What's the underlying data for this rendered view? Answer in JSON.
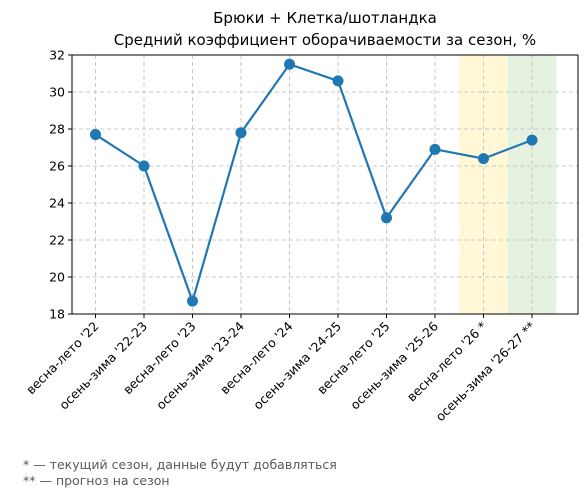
{
  "chart_data": {
    "type": "line",
    "title_line1": "Брюки + Клетка/шотландка",
    "title_line2": "Средний коэффициент оборачиваемости за сезон, %",
    "xlabel": "",
    "ylabel": "",
    "categories": [
      "весна-лето '22",
      "осень-зима '22-23",
      "весна-лето '23",
      "осень-зима '23-24",
      "весна-лето '24",
      "осень-зима '24-25",
      "весна-лето '25",
      "осень-зима '25-26",
      "весна-лето '26 *",
      "осень-зима '26-27 **"
    ],
    "series": [
      {
        "values": [
          27.7,
          26.0,
          18.7,
          27.8,
          31.5,
          30.6,
          23.2,
          26.9,
          26.4,
          27.4
        ],
        "color": "#1f77b4"
      }
    ],
    "ylim": [
      18,
      32
    ],
    "yticks": [
      "18",
      "20",
      "22",
      "24",
      "26",
      "28",
      "30",
      "32"
    ],
    "grid": true,
    "highlights": [
      {
        "category_index": 8,
        "color": "#fff7d6",
        "meaning": "current season"
      },
      {
        "category_index": 9,
        "color": "#e6f2e0",
        "meaning": "forecast"
      }
    ]
  },
  "footnotes": {
    "current": "* — текущий сезон, данные будут добавляться",
    "forecast": "** — прогноз на сезон"
  }
}
